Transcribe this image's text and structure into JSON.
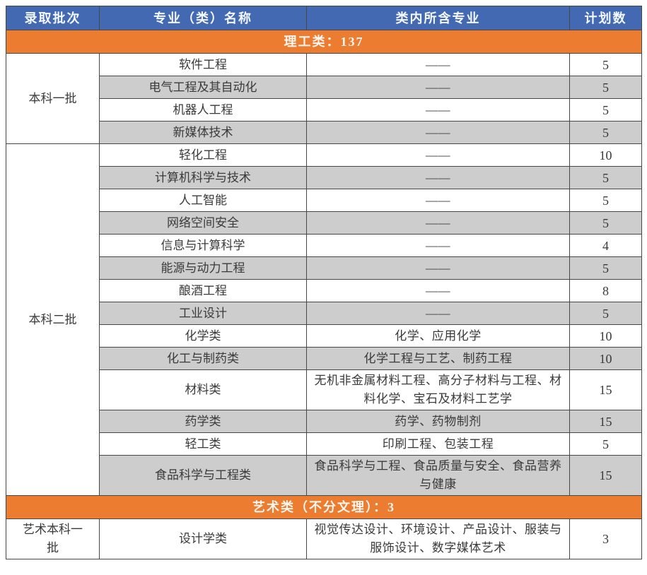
{
  "table": {
    "columns": [
      {
        "label": "录取批次"
      },
      {
        "label": "专业（类）名称"
      },
      {
        "label": "类内所含专业"
      },
      {
        "label": "计划数"
      }
    ],
    "sections": [
      {
        "type": "banner",
        "label": "理工类：137"
      },
      {
        "type": "group",
        "batch": "本科一批",
        "rows": [
          {
            "major": "软件工程",
            "contains": "——",
            "plan": "5"
          },
          {
            "major": "电气工程及其自动化",
            "contains": "——",
            "plan": "5"
          },
          {
            "major": "机器人工程",
            "contains": "——",
            "plan": "5"
          },
          {
            "major": "新媒体技术",
            "contains": "——",
            "plan": "5"
          }
        ]
      },
      {
        "type": "group",
        "batch": "本科二批",
        "rows": [
          {
            "major": "轻化工程",
            "contains": "——",
            "plan": "10"
          },
          {
            "major": "计算机科学与技术",
            "contains": "——",
            "plan": "5"
          },
          {
            "major": "人工智能",
            "contains": "——",
            "plan": "5"
          },
          {
            "major": "网络空间安全",
            "contains": "——",
            "plan": "5"
          },
          {
            "major": "信息与计算科学",
            "contains": "——",
            "plan": "4"
          },
          {
            "major": "能源与动力工程",
            "contains": "——",
            "plan": "5"
          },
          {
            "major": "酿酒工程",
            "contains": "——",
            "plan": "8"
          },
          {
            "major": "工业设计",
            "contains": "——",
            "plan": "5"
          },
          {
            "major": "化学类",
            "contains": "化学、应用化学",
            "plan": "10"
          },
          {
            "major": "化工与制药类",
            "contains": "化学工程与工艺、制药工程",
            "plan": "10"
          },
          {
            "major": "材料类",
            "contains": "无机非金属材料工程、高分子材料与工程、材料化学、宝石及材料工艺学",
            "plan": "15"
          },
          {
            "major": "药学类",
            "contains": "药学、药物制剂",
            "plan": "15"
          },
          {
            "major": "轻工类",
            "contains": "印刷工程、包装工程",
            "plan": "5"
          },
          {
            "major": "食品科学与工程类",
            "contains": "食品科学与工程、食品质量与安全、食品营养与健康",
            "plan": "15"
          }
        ]
      },
      {
        "type": "banner",
        "label": "艺术类（不分文理）：3"
      },
      {
        "type": "group",
        "batch": "艺术本科一批",
        "rows": [
          {
            "major": "设计学类",
            "contains": "视觉传达设计、环境设计、产品设计、服装与服饰设计、数字媒体艺术",
            "plan": "3"
          }
        ]
      }
    ],
    "colors": {
      "header_bg": "#4269b2",
      "header_text": "#f4f7fc",
      "banner_bg": "#ec7c30",
      "banner_text": "#fdf6ef",
      "alt_row_bg": "#cdcdcd",
      "row_bg": "#ffffff",
      "border": "#474747",
      "body_text": "#3a3a3a"
    }
  }
}
